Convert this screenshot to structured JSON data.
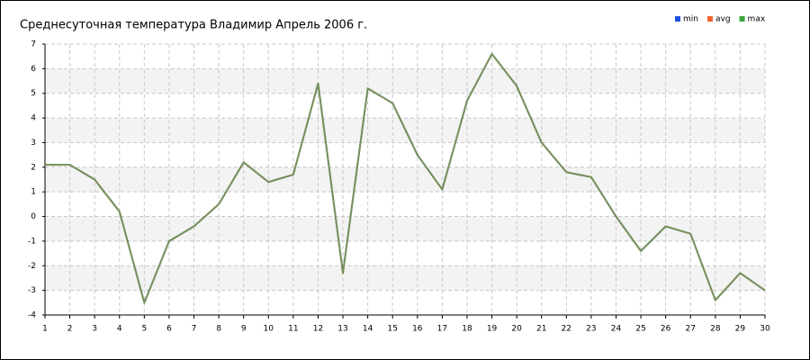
{
  "chart_data": {
    "type": "line",
    "title": "Среднесуточная температура Владимир  Апрель 2006 г.",
    "x": [
      1,
      2,
      3,
      4,
      5,
      6,
      7,
      8,
      9,
      10,
      11,
      12,
      13,
      14,
      15,
      16,
      17,
      18,
      19,
      20,
      21,
      22,
      23,
      24,
      25,
      26,
      27,
      28,
      29,
      30
    ],
    "series": [
      {
        "name": "min",
        "color": "#1f4fe0",
        "values": [
          2.1,
          2.1,
          1.5,
          0.2,
          -3.5,
          -1.0,
          -0.4,
          0.5,
          2.2,
          1.4,
          1.7,
          5.4,
          -2.3,
          5.2,
          4.6,
          2.5,
          1.1,
          4.7,
          6.6,
          5.3,
          3.0,
          1.8,
          1.6,
          0.0,
          -1.4,
          -0.4,
          -0.7,
          -3.4,
          -2.3,
          -3.0
        ]
      },
      {
        "name": "avg",
        "color": "#f0622e",
        "values": [
          2.1,
          2.1,
          1.5,
          0.2,
          -3.5,
          -1.0,
          -0.4,
          0.5,
          2.2,
          1.4,
          1.7,
          5.4,
          -2.3,
          5.2,
          4.6,
          2.5,
          1.1,
          4.7,
          6.6,
          5.3,
          3.0,
          1.8,
          1.6,
          0.0,
          -1.4,
          -0.4,
          -0.7,
          -3.4,
          -2.3,
          -3.0
        ]
      },
      {
        "name": "max",
        "color": "#3aa53a",
        "values": [
          2.1,
          2.1,
          1.5,
          0.2,
          -3.5,
          -1.0,
          -0.4,
          0.5,
          2.2,
          1.4,
          1.7,
          5.4,
          -2.3,
          5.2,
          4.6,
          2.5,
          1.1,
          4.7,
          6.6,
          5.3,
          3.0,
          1.8,
          1.6,
          0.0,
          -1.4,
          -0.4,
          -0.7,
          -3.4,
          -2.3,
          -3.0
        ]
      }
    ],
    "xlim": [
      1,
      30
    ],
    "xticks": [
      1,
      2,
      3,
      4,
      5,
      6,
      7,
      8,
      9,
      10,
      11,
      12,
      13,
      14,
      15,
      16,
      17,
      18,
      19,
      20,
      21,
      22,
      23,
      24,
      25,
      26,
      27,
      28,
      29,
      30
    ],
    "ylim": [
      -4,
      7
    ],
    "yticks": [
      -4,
      -3,
      -2,
      -1,
      0,
      1,
      2,
      3,
      4,
      5,
      6,
      7
    ],
    "grid": true,
    "legend": "top-right"
  }
}
